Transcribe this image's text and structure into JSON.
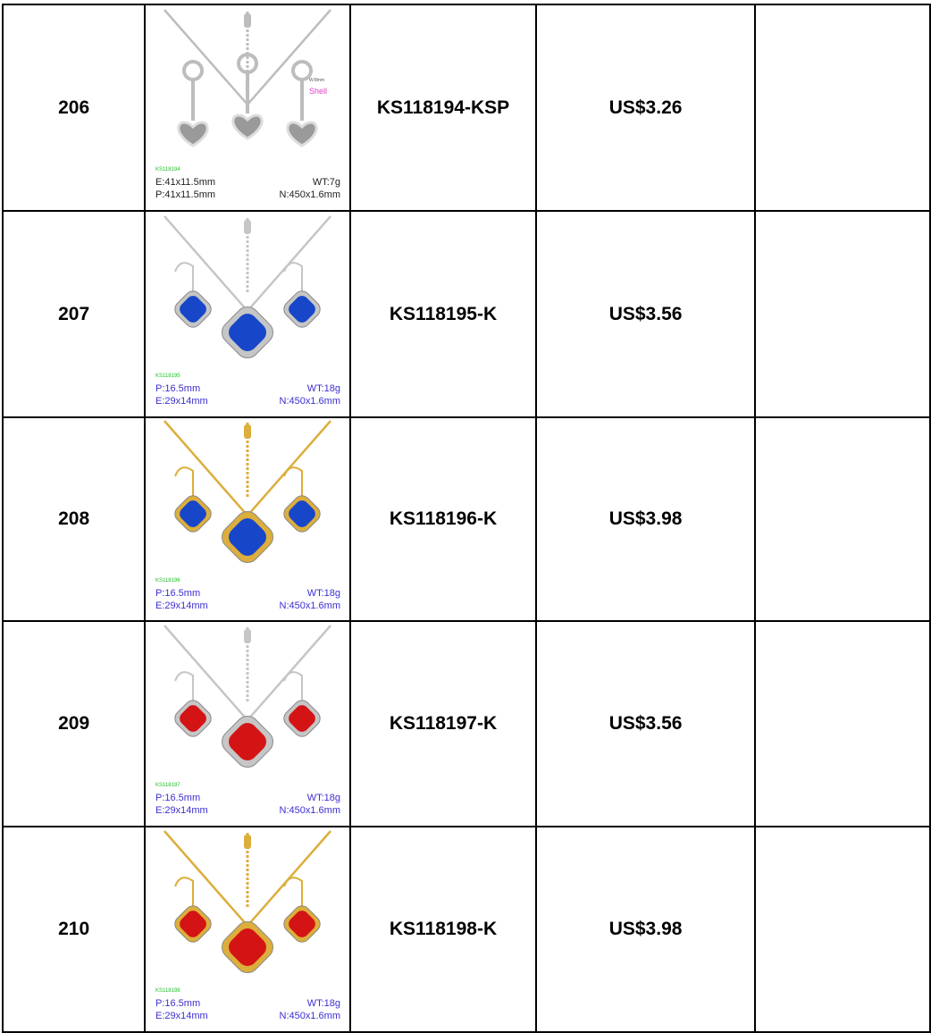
{
  "table": {
    "rows": [
      {
        "number": "206",
        "image": {
          "code": "KS118194",
          "left": [
            "E:41x11.5mm",
            "P:41x11.5mm"
          ],
          "right": [
            "WT:7g",
            "N:450x1.6mm"
          ],
          "notes": [
            "W:8mm",
            "Shell"
          ]
        },
        "item_no": "KS118194-KSP",
        "price": "US$3.26"
      },
      {
        "number": "207",
        "image": {
          "code": "KS118195",
          "left": [
            "P:16.5mm",
            "E:29x14mm"
          ],
          "right": [
            "WT:18g",
            "N:450x1.6mm"
          ]
        },
        "item_no": "KS118195-K",
        "price": "US$3.56"
      },
      {
        "number": "208",
        "image": {
          "code": "KS118196",
          "left": [
            "P:16.5mm",
            "E:29x14mm"
          ],
          "right": [
            "WT:18g",
            "N:450x1.6mm"
          ]
        },
        "item_no": "KS118196-K",
        "price": "US$3.98"
      },
      {
        "number": "209",
        "image": {
          "code": "KS118197",
          "left": [
            "P:16.5mm",
            "E:29x14mm"
          ],
          "right": [
            "WT:18g",
            "N:450x1.6mm"
          ]
        },
        "item_no": "KS118197-K",
        "price": "US$3.56"
      },
      {
        "number": "210",
        "image": {
          "code": "KS118198",
          "left": [
            "P:16.5mm",
            "E:29x14mm"
          ],
          "right": [
            "WT:18g",
            "N:450x1.6mm"
          ]
        },
        "item_no": "KS118198-K",
        "price": "US$3.98"
      }
    ]
  }
}
